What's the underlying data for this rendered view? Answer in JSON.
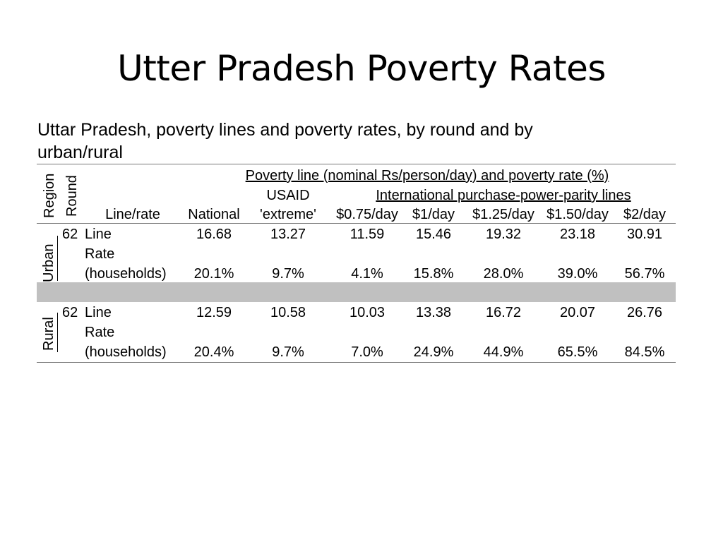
{
  "slide": {
    "title": "Utter Pradesh Poverty Rates",
    "caption_line1": "Uttar Pradesh, poverty lines and poverty rates, by round and by",
    "caption_line2": "urban/rural"
  },
  "table": {
    "header": {
      "region": "Region",
      "round": "Round",
      "line_rate": "Line/rate",
      "super_header": "Poverty line (nominal Rs/person/day) and poverty rate (%)",
      "usaid_top": "USAID",
      "usaid_bottom": "'extreme'",
      "ppp_group": "International purchase-power-parity lines",
      "national": "National",
      "c075": "$0.75/day",
      "c1": "$1/day",
      "c125": "$1.25/day",
      "c150": "$1.50/day",
      "c2": "$2/day"
    },
    "urban": {
      "region": "Urban",
      "round": "62",
      "line_label": "Line",
      "rate_label_1": "Rate",
      "rate_label_2": "(households)",
      "line": [
        "16.68",
        "13.27",
        "11.59",
        "15.46",
        "19.32",
        "23.18",
        "30.91"
      ],
      "rate": [
        "20.1%",
        "9.7%",
        "4.1%",
        "15.8%",
        "28.0%",
        "39.0%",
        "56.7%"
      ]
    },
    "rural": {
      "region": "Rural",
      "round": "62",
      "line_label": "Line",
      "rate_label_1": "Rate",
      "rate_label_2": "(households)",
      "line": [
        "12.59",
        "10.58",
        "10.03",
        "13.38",
        "16.72",
        "20.07",
        "26.76"
      ],
      "rate": [
        "20.4%",
        "9.7%",
        "7.0%",
        "24.9%",
        "44.9%",
        "65.5%",
        "84.5%"
      ]
    }
  }
}
